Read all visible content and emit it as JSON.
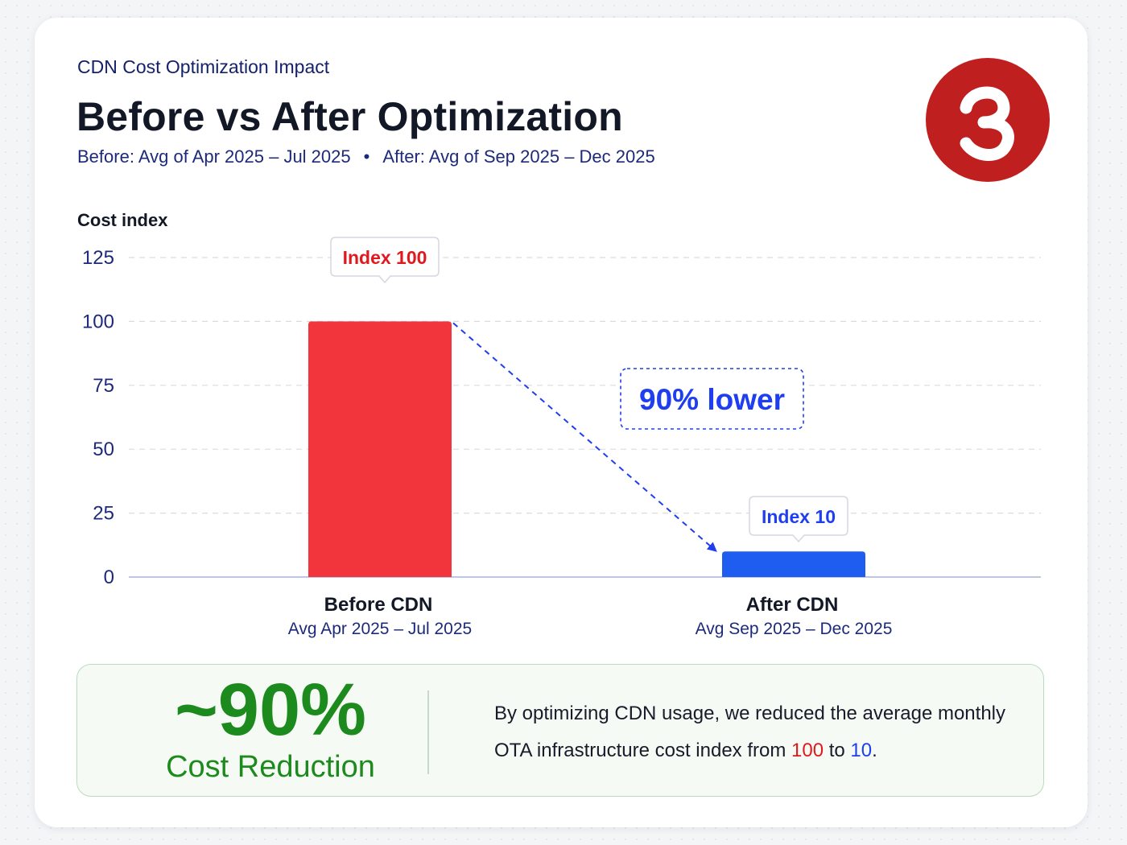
{
  "header": {
    "eyebrow": "CDN Cost Optimization Impact",
    "title": "Before vs After Optimization",
    "subtitle_before": "Before: Avg of Apr 2025 – Jul 2025",
    "subtitle_separator": "•",
    "subtitle_after": "After: Avg of Sep 2025 – Dec 2025"
  },
  "logo": {
    "icon": "devanagari-u-logo-icon",
    "background": "#c01f1f"
  },
  "chart_data": {
    "type": "bar",
    "ylabel": "Cost index",
    "ylim": [
      0,
      125
    ],
    "yticks": [
      0,
      25,
      50,
      75,
      100,
      125
    ],
    "grid": true,
    "categories": [
      {
        "label": "Before CDN",
        "sublabel": "Avg Apr 2025 – Jul 2025",
        "value": 100,
        "data_label": "Index 100",
        "color": "#f2343d",
        "label_color": "#e0191f"
      },
      {
        "label": "After CDN",
        "sublabel": "Avg Sep 2025 – Dec 2025",
        "value": 10,
        "data_label": "Index 10",
        "color": "#1f5cf0",
        "label_color": "#1f3ef0"
      }
    ],
    "annotation": {
      "text": "90% lower",
      "color": "#1f3ef0"
    }
  },
  "summary": {
    "big_number": "~90%",
    "big_label": "Cost Reduction",
    "text_part1": "By optimizing CDN usage, we reduced the average monthly OTA infrastructure cost index from ",
    "from_value": "100",
    "text_part2": " to ",
    "to_value": "10",
    "text_part3": "."
  }
}
